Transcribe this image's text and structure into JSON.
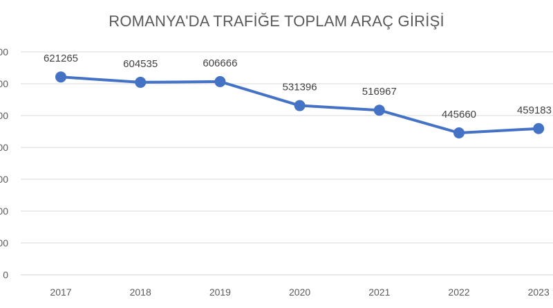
{
  "chart_data": {
    "type": "line",
    "title": "ROMANYA'DA TRAFİĞE TOPLAM ARAÇ GİRİŞİ",
    "categories": [
      "2017",
      "2018",
      "2019",
      "2020",
      "2021",
      "2022",
      "2023"
    ],
    "series": [
      {
        "values": [
          621265,
          604535,
          606666,
          531396,
          516967,
          445660,
          459183
        ]
      }
    ],
    "data_labels": [
      "621265",
      "604535",
      "606666",
      "531396",
      "516967",
      "445660",
      "459183"
    ],
    "y_tick_labels": [
      "00",
      "00",
      "00",
      "00",
      "00",
      "00",
      "00",
      "0"
    ],
    "ylim": [
      0,
      700000
    ],
    "y_step": 100000,
    "grid": true,
    "legend": "none",
    "line_color": "#4472C4",
    "grid_color": "#d9d9d9",
    "text_color": "#595959"
  }
}
